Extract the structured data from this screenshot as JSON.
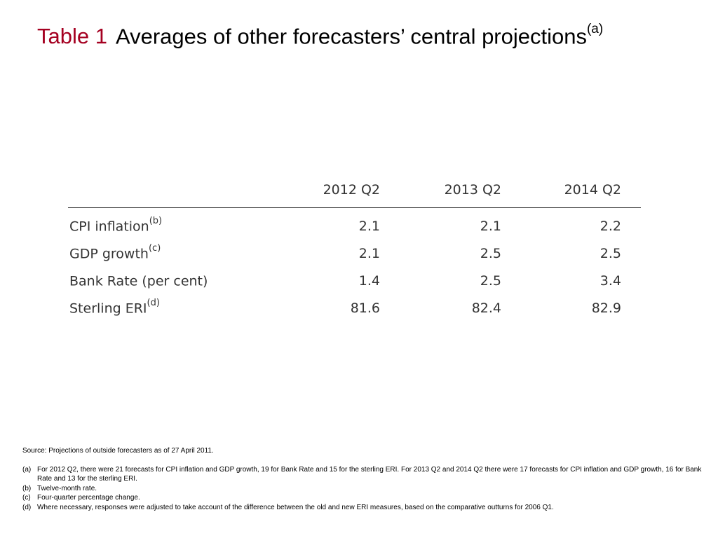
{
  "title": {
    "label": "Table 1",
    "text": "Averages of other forecasters’ central projections",
    "footnote_marker": "(a)"
  },
  "table": {
    "columns": [
      "2012 Q2",
      "2013 Q2",
      "2014 Q2"
    ],
    "rows": [
      {
        "label": "CPI inflation",
        "footnote": "(b)",
        "values": [
          "2.1",
          "2.1",
          "2.2"
        ]
      },
      {
        "label": "GDP growth",
        "footnote": "(c)",
        "values": [
          "2.1",
          "2.5",
          "2.5"
        ]
      },
      {
        "label": "Bank Rate (per cent)",
        "footnote": "",
        "values": [
          "1.4",
          "2.5",
          "3.4"
        ]
      },
      {
        "label": "Sterling ERI",
        "footnote": "(d)",
        "values": [
          "81.6",
          "82.4",
          "82.9"
        ]
      }
    ]
  },
  "notes": {
    "source": "Source:  Projections of outside forecasters as of 27 April 2011.",
    "items": [
      {
        "label": "(a)",
        "text": "For 2012 Q2, there were 21 forecasts for CPI inflation and GDP growth, 19 for Bank Rate and 15 for the sterling ERI.  For 2013 Q2 and 2014 Q2 there were 17 forecasts for CPI inflation and GDP growth, 16 for Bank Rate and 13 for the sterling ERI."
      },
      {
        "label": "(b)",
        "text": "Twelve-month rate."
      },
      {
        "label": "(c)",
        "text": "Four-quarter percentage change."
      },
      {
        "label": "(d)",
        "text": "Where necessary, responses were adjusted to take account of the difference between the old and new ERI measures, based on the comparative outturns for 2006 Q1."
      }
    ]
  }
}
